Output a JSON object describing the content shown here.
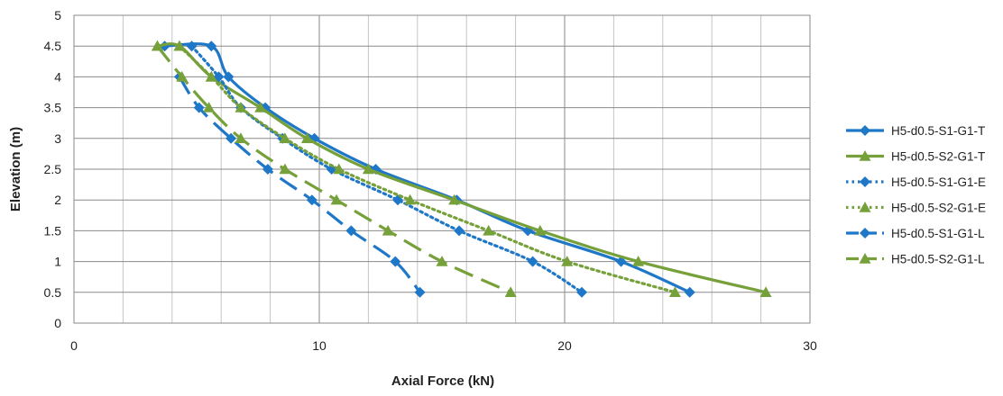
{
  "chart_data": {
    "type": "line",
    "title": "",
    "xlabel": "Axial Force (kN)",
    "ylabel": "Elevation (m)",
    "xlim": [
      0,
      30
    ],
    "ylim": [
      0,
      5
    ],
    "x_ticks": [
      0,
      10,
      20,
      30
    ],
    "x_tick_labels": [
      "0",
      "10",
      "20",
      "30"
    ],
    "x_minor_step": 2,
    "y_ticks": [
      0,
      0.5,
      1,
      1.5,
      2,
      2.5,
      3,
      3.5,
      4,
      4.5,
      5
    ],
    "y_tick_labels": [
      "0",
      "0.5",
      "1",
      "1.5",
      "2",
      "2.5",
      "3",
      "3.5",
      "4",
      "4.5",
      "5"
    ],
    "grid": true,
    "legend_position": "right",
    "series": [
      {
        "name": "H5-d0.5-S1-G1-T",
        "color": "#1f77c8",
        "marker": "diamond",
        "line_style": "solid",
        "x": [
          3.7,
          5.6,
          6.3,
          7.8,
          9.8,
          12.3,
          15.6,
          18.5,
          22.3,
          25.1
        ],
        "y": [
          4.5,
          4.5,
          4.0,
          3.5,
          3.0,
          2.5,
          2.0,
          1.5,
          1.0,
          0.5
        ]
      },
      {
        "name": "H5-d0.5-S2-G1-T",
        "color": "#76a03a",
        "marker": "triangle",
        "line_style": "solid",
        "x": [
          3.4,
          4.3,
          5.6,
          7.6,
          9.5,
          12.0,
          15.5,
          19.0,
          23.0,
          28.2
        ],
        "y": [
          4.5,
          4.5,
          4.0,
          3.5,
          3.0,
          2.5,
          2.0,
          1.5,
          1.0,
          0.5
        ]
      },
      {
        "name": "H5-d0.5-S1-G1-E",
        "color": "#1f77c8",
        "marker": "diamond",
        "line_style": "dotted",
        "x": [
          4.8,
          5.9,
          6.8,
          8.5,
          10.5,
          13.2,
          15.7,
          18.7,
          20.7
        ],
        "y": [
          4.5,
          4.0,
          3.5,
          3.0,
          2.5,
          2.0,
          1.5,
          1.0,
          0.5
        ]
      },
      {
        "name": "H5-d0.5-S2-G1-E",
        "color": "#76a03a",
        "marker": "triangle",
        "line_style": "dotted",
        "x": [
          4.3,
          5.6,
          6.8,
          8.6,
          10.8,
          13.7,
          16.9,
          20.1,
          24.5
        ],
        "y": [
          4.5,
          4.0,
          3.5,
          3.0,
          2.5,
          2.0,
          1.5,
          1.0,
          0.5
        ]
      },
      {
        "name": "H5-d0.5-S1-G1-L",
        "color": "#1f77c8",
        "marker": "diamond",
        "line_style": "dashed",
        "x": [
          4.3,
          5.1,
          6.4,
          7.9,
          9.7,
          11.3,
          13.1,
          14.1
        ],
        "y": [
          4.0,
          3.5,
          3.0,
          2.5,
          2.0,
          1.5,
          1.0,
          0.5
        ]
      },
      {
        "name": "H5-d0.5-S2-G1-L",
        "color": "#76a03a",
        "marker": "triangle",
        "line_style": "dashed",
        "x": [
          3.4,
          4.4,
          5.5,
          6.8,
          8.6,
          10.7,
          12.8,
          15.0,
          17.8
        ],
        "y": [
          4.5,
          4.0,
          3.5,
          3.0,
          2.5,
          2.0,
          1.5,
          1.0,
          0.5
        ]
      }
    ]
  }
}
